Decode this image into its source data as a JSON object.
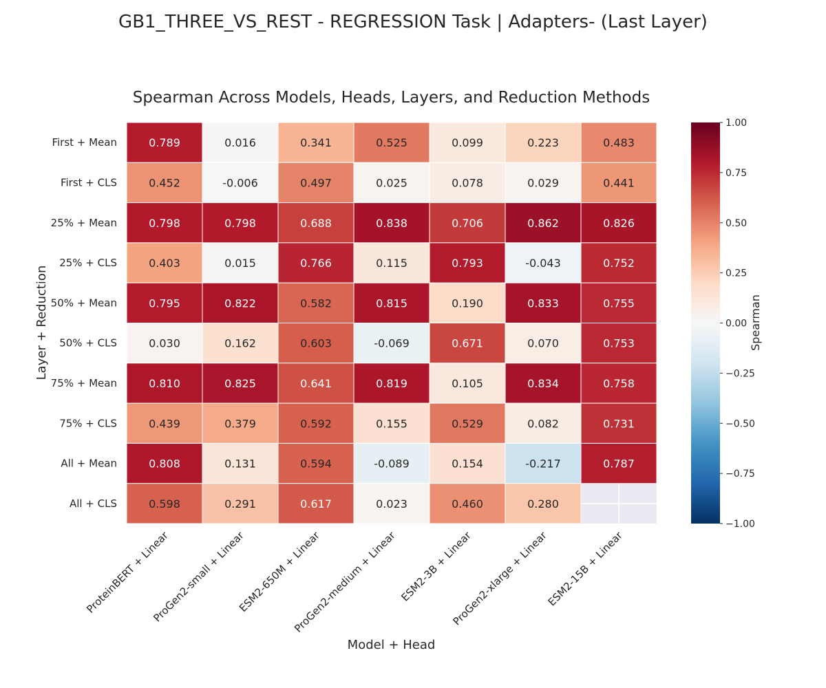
{
  "suptitle": "GB1_THREE_VS_REST - REGRESSION Task | Adapters- (Last Layer)",
  "chart_data": {
    "type": "heatmap",
    "title": "Spearman Across Models, Heads, Layers, and Reduction Methods",
    "xlabel": "Model + Head",
    "ylabel": "Layer + Reduction",
    "x_categories": [
      "ProteinBERT + Linear",
      "ProGen2-small + Linear",
      "ESM2-650M + Linear",
      "ProGen2-medium + Linear",
      "ESM2-3B + Linear",
      "ProGen2-xlarge + Linear",
      "ESM2-15B + Linear"
    ],
    "y_categories": [
      "First + Mean",
      "First + CLS",
      "25% + Mean",
      "25% + CLS",
      "50% + Mean",
      "50% + CLS",
      "75% + Mean",
      "75% + CLS",
      "All + Mean",
      "All + CLS"
    ],
    "values": [
      [
        0.789,
        0.016,
        0.341,
        0.525,
        0.099,
        0.223,
        0.483
      ],
      [
        0.452,
        -0.006,
        0.497,
        0.025,
        0.078,
        0.029,
        0.441
      ],
      [
        0.798,
        0.798,
        0.688,
        0.838,
        0.706,
        0.862,
        0.826
      ],
      [
        0.403,
        0.015,
        0.766,
        0.115,
        0.793,
        -0.043,
        0.752
      ],
      [
        0.795,
        0.822,
        0.582,
        0.815,
        0.19,
        0.833,
        0.755
      ],
      [
        0.03,
        0.162,
        0.603,
        -0.069,
        0.671,
        0.07,
        0.753
      ],
      [
        0.81,
        0.825,
        0.641,
        0.819,
        0.105,
        0.834,
        0.758
      ],
      [
        0.439,
        0.379,
        0.592,
        0.155,
        0.529,
        0.082,
        0.731
      ],
      [
        0.808,
        0.131,
        0.594,
        -0.089,
        0.154,
        -0.217,
        0.787
      ],
      [
        0.598,
        0.291,
        0.617,
        0.023,
        0.46,
        0.28,
        null
      ]
    ],
    "value_labels": [
      [
        "0.789",
        "0.016",
        "0.341",
        "0.525",
        "0.099",
        "0.223",
        "0.483"
      ],
      [
        "0.452",
        "-0.006",
        "0.497",
        "0.025",
        "0.078",
        "0.029",
        "0.441"
      ],
      [
        "0.798",
        "0.798",
        "0.688",
        "0.838",
        "0.706",
        "0.862",
        "0.826"
      ],
      [
        "0.403",
        "0.015",
        "0.766",
        "0.115",
        "0.793",
        "-0.043",
        "0.752"
      ],
      [
        "0.795",
        "0.822",
        "0.582",
        "0.815",
        "0.190",
        "0.833",
        "0.755"
      ],
      [
        "0.030",
        "0.162",
        "0.603",
        "-0.069",
        "0.671",
        "0.070",
        "0.753"
      ],
      [
        "0.810",
        "0.825",
        "0.641",
        "0.819",
        "0.105",
        "0.834",
        "0.758"
      ],
      [
        "0.439",
        "0.379",
        "0.592",
        "0.155",
        "0.529",
        "0.082",
        "0.731"
      ],
      [
        "0.808",
        "0.131",
        "0.594",
        "-0.089",
        "0.154",
        "-0.217",
        "0.787"
      ],
      [
        "0.598",
        "0.291",
        "0.617",
        "0.023",
        "0.460",
        "0.280",
        ""
      ]
    ],
    "colormap": "RdBu_r",
    "vmin": -1.0,
    "vmax": 1.0,
    "missing_color": "#eaeaf2",
    "colorbar": {
      "label": "Spearman",
      "ticks": [
        1.0,
        0.75,
        0.5,
        0.25,
        0.0,
        -0.25,
        -0.5,
        -0.75,
        -1.0
      ],
      "tick_labels": [
        "1.00",
        "0.75",
        "0.50",
        "0.25",
        "0.00",
        "−0.25",
        "−0.50",
        "−0.75",
        "−1.00"
      ]
    }
  }
}
